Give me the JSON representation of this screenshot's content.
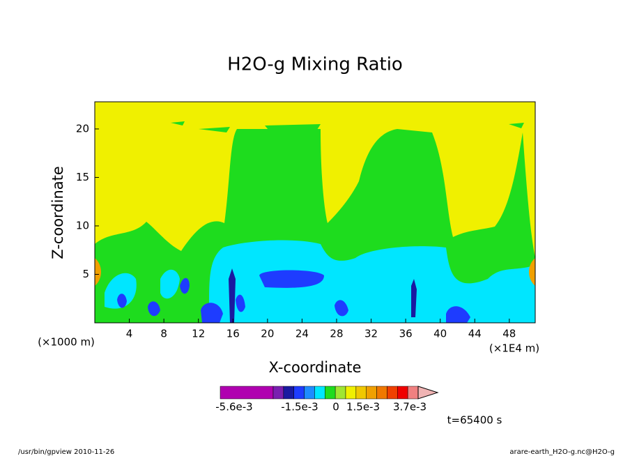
{
  "chart_data": {
    "type": "contour",
    "title": "H2O-g Mixing Ratio",
    "x_label": "X-coordinate",
    "y_label": "Z-coordinate",
    "x_unit_left": "(×1000 m)",
    "x_unit_right": "(×1E4 m)",
    "xlim": [
      0,
      51
    ],
    "ylim": [
      0,
      22.8
    ],
    "xticks": [
      4,
      8,
      12,
      16,
      20,
      24,
      28,
      32,
      36,
      40,
      44,
      48
    ],
    "yticks": [
      5,
      10,
      15,
      20
    ],
    "colorbar": {
      "colors": [
        "#b000b0",
        "#7a1fb0",
        "#1a1aa0",
        "#1e3cff",
        "#1e8cff",
        "#00e6ff",
        "#1edc1e",
        "#a0e632",
        "#f0f000",
        "#f0c800",
        "#f0a000",
        "#f07800",
        "#f04000",
        "#f00000",
        "#f08080",
        "#f0b4b4"
      ],
      "labels": [
        "-5.6e-3",
        "-1.5e-3",
        "0",
        "1.5e-3",
        "3.7e-3"
      ]
    },
    "time_label": "t=65400 s",
    "footer_left": "/usr/bin/gpview  2010-11-26",
    "footer_right": "arare-earth_H2O-g.nc@H2O-g"
  }
}
